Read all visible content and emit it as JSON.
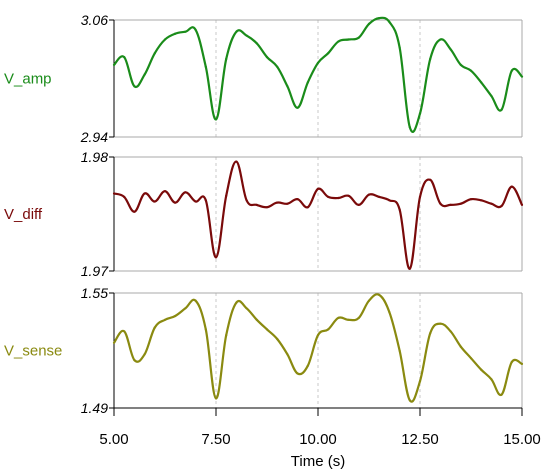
{
  "chart_data": {
    "type": "line",
    "xlabel": "Time (s)",
    "xlim": [
      5.0,
      15.0
    ],
    "xticks": [
      "5.00",
      "7.50",
      "10.00",
      "12.50",
      "15.00"
    ],
    "grid": "vertical dashed",
    "panels": [
      {
        "name": "V_amp",
        "color": "#1a8c1a",
        "ylim": [
          2.94,
          3.06
        ],
        "ytick_labels": [
          "3.06",
          "2.94"
        ],
        "x": [
          5.0,
          5.25,
          5.5,
          5.75,
          6.0,
          6.25,
          6.5,
          6.75,
          7.0,
          7.25,
          7.5,
          7.75,
          8.0,
          8.25,
          8.5,
          8.75,
          9.0,
          9.25,
          9.5,
          9.75,
          10.0,
          10.25,
          10.5,
          10.75,
          11.0,
          11.25,
          11.5,
          11.75,
          12.0,
          12.25,
          12.5,
          12.75,
          13.0,
          13.25,
          13.5,
          13.75,
          14.0,
          14.25,
          14.5,
          14.75,
          15.0
        ],
        "values": [
          3.014,
          3.022,
          2.992,
          3.004,
          3.026,
          3.04,
          3.046,
          3.048,
          3.05,
          3.012,
          2.958,
          3.02,
          3.048,
          3.044,
          3.036,
          3.022,
          3.012,
          2.992,
          2.97,
          2.996,
          3.016,
          3.026,
          3.038,
          3.04,
          3.042,
          3.056,
          3.062,
          3.058,
          3.032,
          2.95,
          2.964,
          3.02,
          3.04,
          3.03,
          3.014,
          3.008,
          2.996,
          2.982,
          2.968,
          3.008,
          3.002
        ]
      },
      {
        "name": "V_diff",
        "color": "#7a0a0a",
        "ylim": [
          1.97,
          1.98
        ],
        "ytick_labels": [
          "1.98",
          "1.97"
        ],
        "x": [
          5.0,
          5.25,
          5.5,
          5.75,
          6.0,
          6.25,
          6.5,
          6.75,
          7.0,
          7.25,
          7.5,
          7.75,
          8.0,
          8.25,
          8.5,
          8.75,
          9.0,
          9.25,
          9.5,
          9.75,
          10.0,
          10.25,
          10.5,
          10.75,
          11.0,
          11.25,
          11.5,
          11.75,
          12.0,
          12.25,
          12.5,
          12.75,
          13.0,
          13.25,
          13.5,
          13.75,
          14.0,
          14.25,
          14.5,
          14.75,
          15.0
        ],
        "values": [
          1.9768,
          1.9765,
          1.9752,
          1.9768,
          1.9761,
          1.977,
          1.976,
          1.9769,
          1.9761,
          1.9762,
          1.9712,
          1.9766,
          1.9796,
          1.9762,
          1.9758,
          1.9756,
          1.976,
          1.9759,
          1.9763,
          1.9756,
          1.9772,
          1.9765,
          1.9764,
          1.9766,
          1.9758,
          1.9767,
          1.9765,
          1.9762,
          1.9754,
          1.9702,
          1.9765,
          1.978,
          1.9759,
          1.9758,
          1.9759,
          1.9763,
          1.9762,
          1.9759,
          1.9757,
          1.9774,
          1.9758
        ]
      },
      {
        "name": "V_sense",
        "color": "#8a8a10",
        "ylim": [
          1.49,
          1.55
        ],
        "ytick_labels": [
          "1.55",
          "1.49"
        ],
        "x": [
          5.0,
          5.25,
          5.5,
          5.75,
          6.0,
          6.25,
          6.5,
          6.75,
          7.0,
          7.25,
          7.5,
          7.75,
          8.0,
          8.25,
          8.5,
          8.75,
          9.0,
          9.25,
          9.5,
          9.75,
          10.0,
          10.25,
          10.5,
          10.75,
          11.0,
          11.25,
          11.5,
          11.75,
          12.0,
          12.25,
          12.5,
          12.75,
          13.0,
          13.25,
          13.5,
          13.75,
          14.0,
          14.25,
          14.5,
          14.75,
          15.0
        ],
        "values": [
          1.524,
          1.53,
          1.515,
          1.518,
          1.532,
          1.536,
          1.538,
          1.542,
          1.546,
          1.531,
          1.495,
          1.528,
          1.545,
          1.542,
          1.536,
          1.531,
          1.526,
          1.518,
          1.508,
          1.512,
          1.528,
          1.531,
          1.537,
          1.536,
          1.537,
          1.546,
          1.549,
          1.54,
          1.52,
          1.494,
          1.504,
          1.529,
          1.534,
          1.53,
          1.522,
          1.516,
          1.51,
          1.505,
          1.497,
          1.514,
          1.513
        ]
      }
    ]
  }
}
